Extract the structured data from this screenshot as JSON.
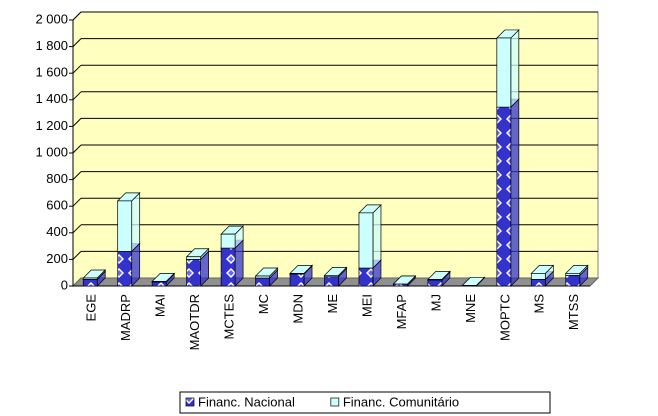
{
  "chart_data": {
    "type": "bar",
    "stacked": true,
    "categories": [
      "EGE",
      "MADRP",
      "MAI",
      "MAOTDR",
      "MCTES",
      "MC",
      "MDN",
      "ME",
      "MEI",
      "MFAP",
      "MJ",
      "MNE",
      "MOPTC",
      "MS",
      "MTSS"
    ],
    "series": [
      {
        "name": "Financ. Nacional",
        "color": "#3333cc",
        "values": [
          50,
          260,
          30,
          200,
          285,
          60,
          90,
          70,
          135,
          15,
          45,
          5,
          1345,
          50,
          80
        ]
      },
      {
        "name": "Financ. Comunitário",
        "color": "#ccffff",
        "values": [
          10,
          380,
          5,
          20,
          105,
          15,
          5,
          10,
          415,
          0,
          5,
          0,
          520,
          45,
          15
        ]
      }
    ],
    "ylim": [
      0,
      2000
    ],
    "yticks": [
      0,
      200,
      400,
      600,
      800,
      {
        "value": 1000,
        "label": "1 000"
      },
      {
        "value": 1200,
        "label": "1 200"
      },
      {
        "value": 1400,
        "label": "1 400"
      },
      {
        "value": 1600,
        "label": "1 600"
      },
      {
        "value": 1800,
        "label": "1 800"
      },
      {
        "value": 2000,
        "label": "2 000"
      }
    ],
    "grid": true,
    "legend": "bottom"
  }
}
